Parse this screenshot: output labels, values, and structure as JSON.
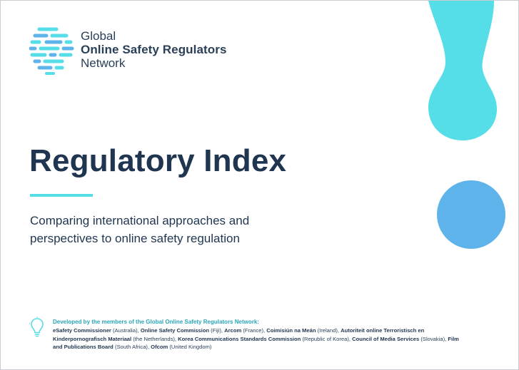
{
  "logo": {
    "line1": "Global",
    "line2": "Online Safety Regulators",
    "line3": "Network"
  },
  "title": "Regulatory Index",
  "subtitle": {
    "line1": "Comparing international approaches and",
    "line2": "perspectives to online safety regulation"
  },
  "credits": {
    "heading": "Developed by the members of the Global Online Safety Regulators Network:",
    "members": [
      {
        "name": "eSafety Commissioner",
        "country": "(Australia), "
      },
      {
        "name": "Online Safety Commission",
        "country": "(Fiji), "
      },
      {
        "name": "Arcom",
        "country": "(France), "
      },
      {
        "name": "Coimisiún na Meán",
        "country": "(Ireland), "
      },
      {
        "name": "Autoriteit online Terroristisch en Kinderpornografisch Materiaal",
        "country": "(the Netherlands), "
      },
      {
        "name": "Korea Communications Standards Commission",
        "country": "(Republic of Korea), "
      },
      {
        "name": "Council of Media Services",
        "country": "(Slovakia), "
      },
      {
        "name": "Film and Publications Board",
        "country": "(South Africa), "
      },
      {
        "name": "Ofcom",
        "country": "(United Kingdom)"
      }
    ]
  },
  "icons": {
    "logo": "globe-dots-logo-icon",
    "bulb": "lightbulb-icon"
  },
  "colors": {
    "navy": "#1f3550",
    "cyan": "#55dde8",
    "blue": "#5db3ea",
    "teal_text": "#2aa6b8"
  }
}
